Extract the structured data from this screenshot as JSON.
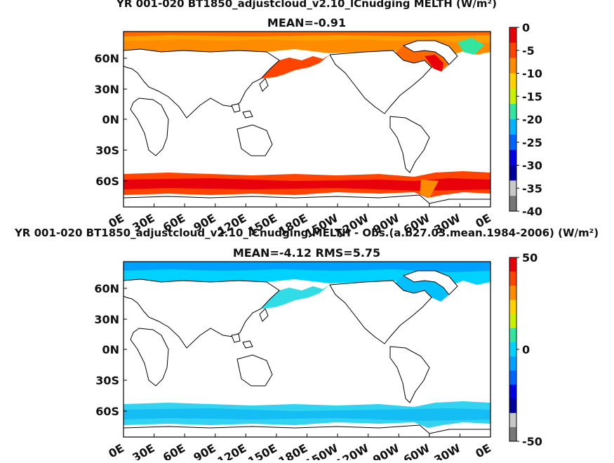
{
  "panels": [
    {
      "title": "YR 001-020 BT1850_adjustcloud_v2.10_lCnudging  MELTH (W/m²)",
      "subtitle": "MEAN=-0.91",
      "lat_labels": [
        "60N",
        "30N",
        "0N",
        "30S",
        "60S"
      ],
      "lon_labels": [
        "0E",
        "30E",
        "60E",
        "90E",
        "120E",
        "150E",
        "180E",
        "150W",
        "120W",
        "90W",
        "60W",
        "30W",
        "0E"
      ],
      "colorbar_labels": [
        "0",
        "-5",
        "-10",
        "-15",
        "-20",
        "-25",
        "-30",
        "-35",
        "-40"
      ],
      "colorbar_values": [
        0,
        -5,
        -10,
        -15,
        -20,
        -25,
        -30,
        -35,
        -40
      ],
      "colorbar_colors": [
        "#e8000b",
        "#ff4400",
        "#ff8c00",
        "#ffd200",
        "#c8f000",
        "#32e6a0",
        "#00b4ff",
        "#0064ff",
        "#0000e0",
        "#00009a",
        "#c8c8c8",
        "#787878"
      ]
    },
    {
      "title": "YR 001-020 BT1850_adjustcloud_v2.10_lCnudging  MELTH - Obs.(a.b27.03.mean.1984-2006) (W/m²)",
      "subtitle": "MEAN=-4.12 RMS=5.75",
      "lat_labels": [
        "60N",
        "30N",
        "0N",
        "30S",
        "60S"
      ],
      "lon_labels": [
        "0E",
        "30E",
        "60E",
        "90E",
        "120E",
        "150E",
        "180E",
        "150W",
        "120W",
        "90W",
        "60W",
        "30W",
        "0E"
      ],
      "colorbar_labels": [
        "50",
        "0",
        "-50"
      ],
      "colorbar_values": [
        50,
        0,
        -50
      ],
      "colorbar_colors": [
        "#e8000b",
        "#ff4400",
        "#ff8c00",
        "#ffd200",
        "#c8f000",
        "#32e6a0",
        "#00d2ff",
        "#00a0ff",
        "#0064ff",
        "#0000e0",
        "#00009a",
        "#c8c8c8",
        "#787878"
      ]
    }
  ]
}
